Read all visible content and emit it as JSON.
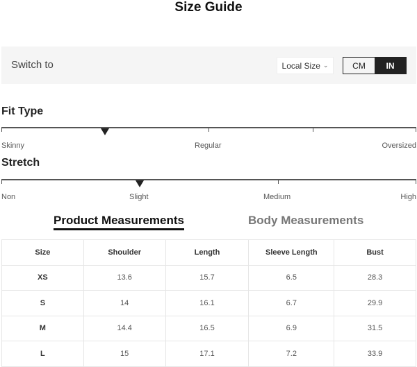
{
  "title": "Size Guide",
  "switch": {
    "label": "Switch to",
    "dropdown": "Local Size",
    "units": [
      "CM",
      "IN"
    ],
    "active_unit": "IN"
  },
  "fit": {
    "title": "Fit Type",
    "labels": [
      "Skinny",
      "Regular",
      "Oversized"
    ],
    "level": 0.25
  },
  "stretch": {
    "title": "Stretch",
    "labels": [
      "Non",
      "Slight",
      "Medium",
      "High"
    ],
    "level": 0.333
  },
  "tabs": [
    {
      "label": "Product Measurements",
      "active": true
    },
    {
      "label": "Body Measurements",
      "active": false
    }
  ],
  "table": {
    "headers": [
      "Size",
      "Shoulder",
      "Length",
      "Sleeve Length",
      "Bust"
    ],
    "rows": [
      [
        "XS",
        "13.6",
        "15.7",
        "6.5",
        "28.3"
      ],
      [
        "S",
        "14",
        "16.1",
        "6.7",
        "29.9"
      ],
      [
        "M",
        "14.4",
        "16.5",
        "6.9",
        "31.5"
      ],
      [
        "L",
        "15",
        "17.1",
        "7.2",
        "33.9"
      ]
    ]
  }
}
